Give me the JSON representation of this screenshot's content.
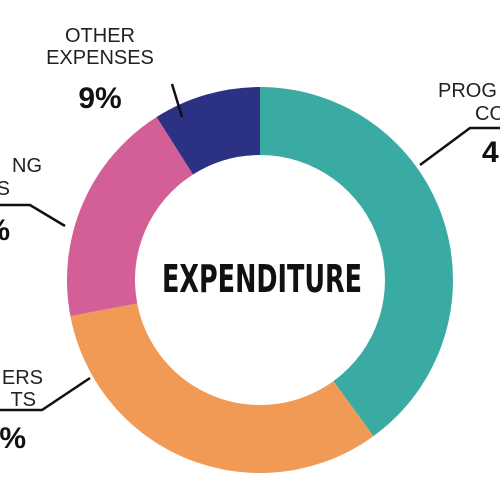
{
  "chart_data": {
    "type": "donut",
    "center_label": "EXPENDITURE",
    "series": [
      {
        "label_lines": [
          "PROG",
          "CO"
        ],
        "value_label": "4",
        "color": "#3aaba3",
        "values": [
          40
        ]
      },
      {
        "label_lines": [
          "ERS",
          "TS"
        ],
        "value_label": "%",
        "color": "#f09a55",
        "values": [
          32
        ]
      },
      {
        "label_lines": [
          "NG",
          "S"
        ],
        "value_label": "%",
        "color": "#d45e96",
        "values": [
          19
        ]
      },
      {
        "label_lines": [
          "OTHER",
          "EXPENSES"
        ],
        "value_label": "9%",
        "color": "#2b3284",
        "values": [
          9
        ]
      }
    ]
  }
}
